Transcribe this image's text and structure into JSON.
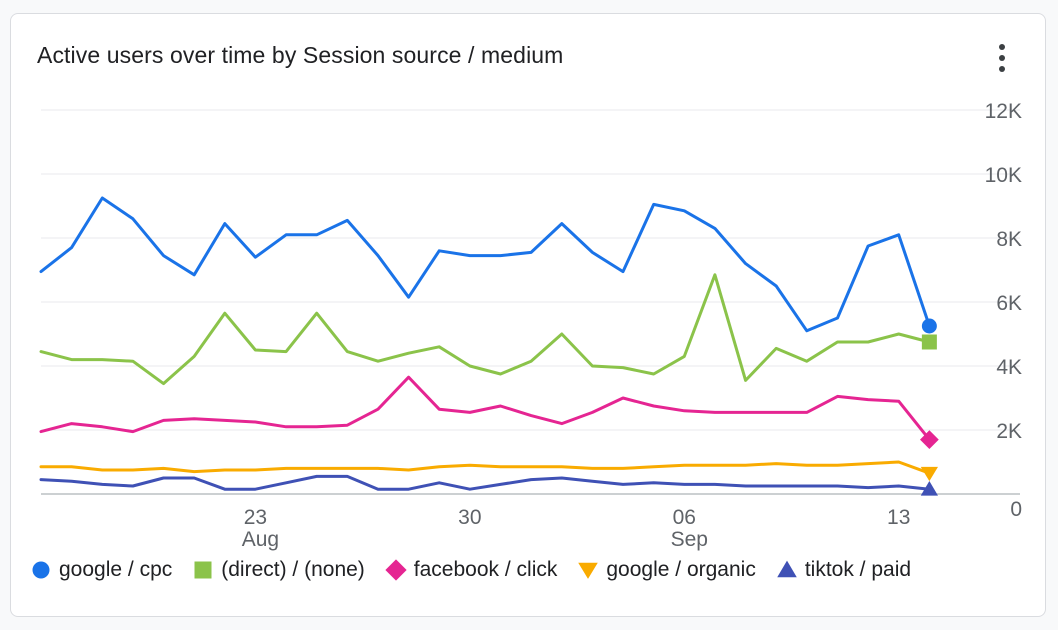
{
  "title": "Active users over time by Session source / medium",
  "menu_icon": "more-vert-icon",
  "chart_data": {
    "type": "line",
    "title": "Active users over time by Session source / medium",
    "x_start": "2025-08-16",
    "x_end": "2025-09-15",
    "x_ticks": [
      {
        "day": "23",
        "month": "Aug",
        "date": "2025-08-23"
      },
      {
        "day": "30",
        "month": "",
        "date": "2025-08-30"
      },
      {
        "day": "06",
        "month": "Sep",
        "date": "2025-09-06"
      },
      {
        "day": "13",
        "month": "",
        "date": "2025-09-13"
      }
    ],
    "y_ticks": [
      "0",
      "2K",
      "4K",
      "6K",
      "8K",
      "10K",
      "12K"
    ],
    "ylim": [
      0,
      12000
    ],
    "y_axis_position": "right",
    "grid": true,
    "legend_position": "bottom",
    "series": [
      {
        "name": "google / cpc",
        "color": "#1a73e8",
        "marker": "circle",
        "values": [
          6950,
          7700,
          9250,
          8600,
          7450,
          6850,
          8450,
          7400,
          8100,
          8100,
          8550,
          7450,
          6150,
          7600,
          7450,
          7450,
          7550,
          8450,
          7550,
          6950,
          9050,
          8850,
          8300,
          7200,
          6500,
          5100,
          5500,
          7750,
          8100,
          5250
        ]
      },
      {
        "name": "(direct) / (none)",
        "color": "#8bc34a",
        "marker": "square",
        "values": [
          4450,
          4200,
          4200,
          4150,
          3450,
          4300,
          5650,
          4500,
          4450,
          5650,
          4450,
          4150,
          4400,
          4600,
          4000,
          3750,
          4150,
          5000,
          4000,
          3950,
          3750,
          4300,
          6850,
          3550,
          4550,
          4150,
          4750,
          4750,
          5000,
          4750
        ]
      },
      {
        "name": "facebook / click",
        "color": "#e52592",
        "marker": "diamond",
        "values": [
          1950,
          2200,
          2100,
          1950,
          2300,
          2350,
          2300,
          2250,
          2100,
          2100,
          2150,
          2650,
          3650,
          2650,
          2550,
          2750,
          2450,
          2200,
          2550,
          3000,
          2750,
          2600,
          2550,
          2550,
          2550,
          2550,
          3050,
          2950,
          2900,
          1700
        ]
      },
      {
        "name": "google / organic",
        "color": "#f9ab00",
        "marker": "triangle-down",
        "values": [
          850,
          850,
          750,
          750,
          800,
          700,
          750,
          750,
          800,
          800,
          800,
          800,
          750,
          850,
          900,
          850,
          850,
          850,
          800,
          800,
          850,
          900,
          900,
          900,
          950,
          900,
          900,
          950,
          1000,
          650
        ]
      },
      {
        "name": "tiktok / paid",
        "color": "#3f51b5",
        "marker": "triangle-up",
        "values": [
          450,
          400,
          300,
          250,
          500,
          500,
          150,
          150,
          350,
          550,
          550,
          150,
          150,
          350,
          150,
          300,
          450,
          500,
          400,
          300,
          350,
          300,
          300,
          250,
          250,
          250,
          250,
          200,
          250,
          150
        ]
      }
    ]
  }
}
